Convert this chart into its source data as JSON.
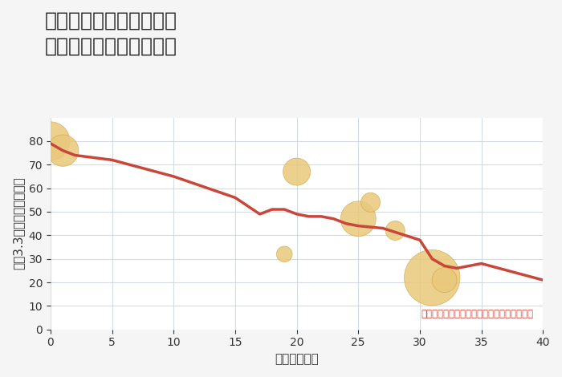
{
  "title": "神奈川県秦野市春日町の\n築年数別中古戸建て価格",
  "xlabel": "築年数（年）",
  "ylabel": "坪（3.3㎡）単価（万円）",
  "background_color": "#f5f5f5",
  "plot_background": "#ffffff",
  "line_color": "#c9473a",
  "line_x": [
    0,
    1,
    2,
    5,
    10,
    15,
    17,
    18,
    19,
    20,
    21,
    22,
    23,
    24,
    25,
    27,
    30,
    31,
    32,
    33,
    35,
    40
  ],
  "line_y": [
    79,
    76,
    74,
    72,
    65,
    56,
    49,
    51,
    51,
    49,
    48,
    48,
    47,
    45,
    44,
    43,
    38,
    30,
    27,
    26,
    28,
    21
  ],
  "scatter_x": [
    0,
    1,
    20,
    25,
    26,
    28,
    31,
    32,
    19
  ],
  "scatter_y": [
    80,
    76,
    67,
    47,
    54,
    42,
    22,
    21,
    32
  ],
  "scatter_sizes": [
    1200,
    800,
    600,
    1000,
    300,
    300,
    2500,
    500,
    200
  ],
  "scatter_color": "#e8c87a",
  "scatter_edge_color": "#d4a84b",
  "annotation": "円の大きさは、取引のあった物件面積を示す",
  "annotation_color": "#c9473a",
  "xlim": [
    0,
    40
  ],
  "ylim": [
    0,
    90
  ],
  "xticks": [
    0,
    5,
    10,
    15,
    20,
    25,
    30,
    35,
    40
  ],
  "yticks": [
    0,
    10,
    20,
    30,
    40,
    50,
    60,
    70,
    80
  ],
  "title_fontsize": 18,
  "label_fontsize": 11,
  "tick_fontsize": 10
}
